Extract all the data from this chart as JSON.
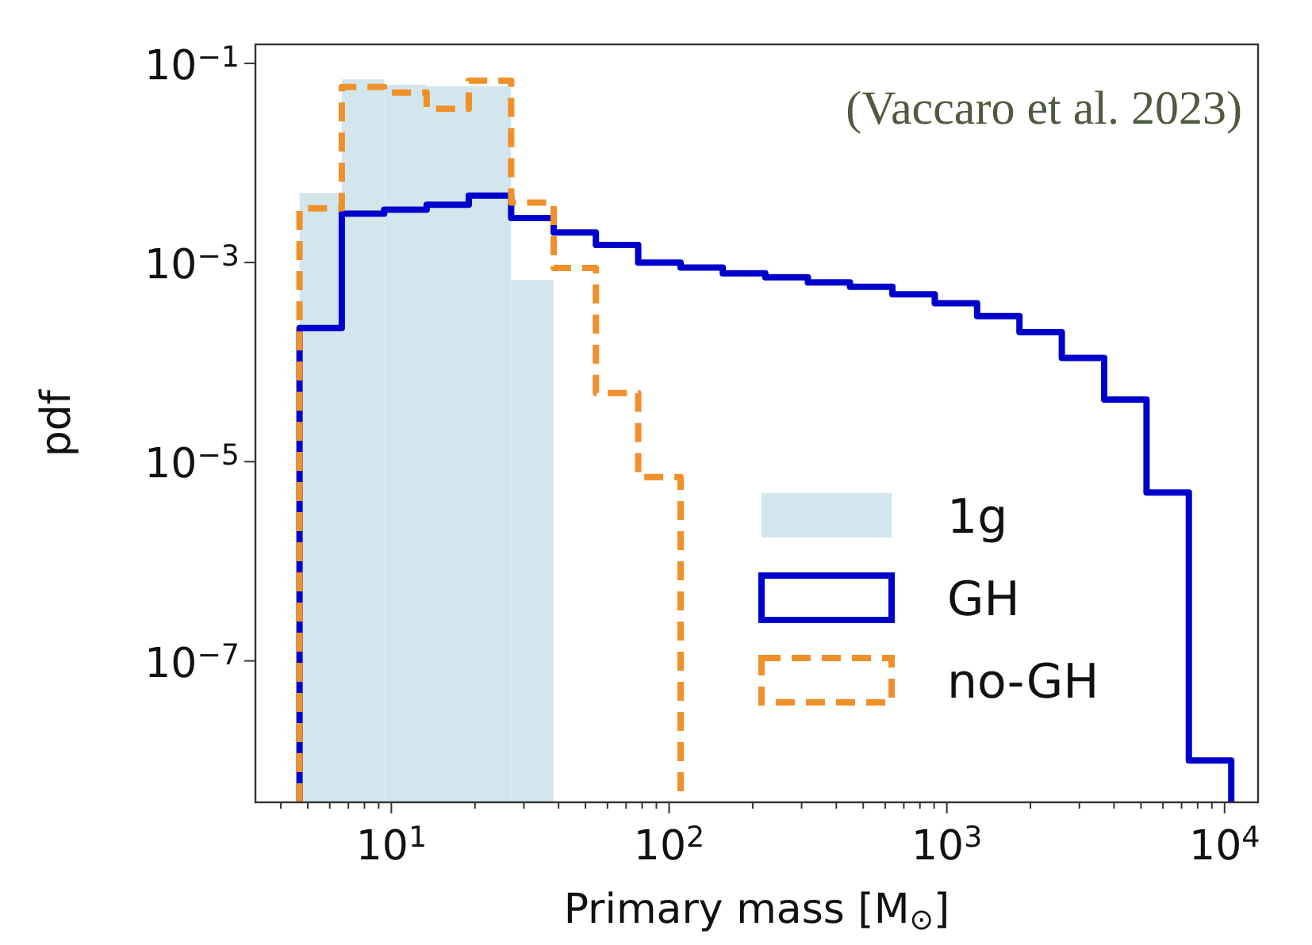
{
  "chart_data": {
    "type": "histogram",
    "xlabel": "Primary mass [M$_{⊙}$]",
    "ylabel": "pdf",
    "log": "xy",
    "annotations": [
      "(Vaccaro et al. 2023)"
    ],
    "bins": [
      4.67,
      6.63,
      9.42,
      13.4,
      19.0,
      27.0,
      38.4,
      54.5,
      77.4,
      110,
      156,
      222,
      316,
      448,
      637,
      905,
      1285,
      1826,
      2594,
      3686,
      5236,
      7437,
      10570
    ],
    "series": [
      {
        "name": "1g",
        "color": "#d3e6ee",
        "bins": [
          4.67,
          6.63,
          9.42,
          13.4,
          19.0,
          27.0,
          38.4
        ],
        "values": [
          0.005,
          0.069,
          0.061,
          0.059,
          0.059,
          0.00067
        ]
      },
      {
        "name": "GH",
        "color": "#0000cc",
        "line_style": "solid",
        "values": [
          0.00022,
          0.0031,
          0.0034,
          0.0038,
          0.0047,
          0.0028,
          0.002,
          0.0015,
          0.001,
          0.00089,
          0.00078,
          0.00071,
          0.00063,
          0.00057,
          0.00048,
          0.00039,
          0.00029,
          0.0002,
          0.00011,
          4.2e-05,
          4.9e-06,
          1e-08
        ]
      },
      {
        "name": "no-GH",
        "color": "#f0902a",
        "line_style": "dashed",
        "bins": [
          4.67,
          6.63,
          9.42,
          13.4,
          19.0,
          27.0,
          38.4,
          54.5,
          77.4,
          110
        ],
        "values": [
          0.0035,
          0.058,
          0.051,
          0.035,
          0.067,
          0.004,
          0.00088,
          4.9e-05,
          7e-06
        ]
      }
    ],
    "xlim": [
      3.24,
      13200
    ],
    "ylim": [
      3.8e-09,
      0.155
    ],
    "xticks": [
      {
        "value": 4,
        "label": null
      },
      {
        "value": 5,
        "label": null
      },
      {
        "value": 6,
        "label": null
      },
      {
        "value": 7,
        "label": null
      },
      {
        "value": 8,
        "label": null
      },
      {
        "value": 9,
        "label": null
      },
      {
        "value": 10,
        "label": "10$^{1}$"
      },
      {
        "value": 20,
        "label": null
      },
      {
        "value": 30,
        "label": null
      },
      {
        "value": 40,
        "label": null
      },
      {
        "value": 50,
        "label": null
      },
      {
        "value": 60,
        "label": null
      },
      {
        "value": 70,
        "label": null
      },
      {
        "value": 80,
        "label": null
      },
      {
        "value": 90,
        "label": null
      },
      {
        "value": 100,
        "label": "10$^{2}$"
      },
      {
        "value": 200,
        "label": null
      },
      {
        "value": 300,
        "label": null
      },
      {
        "value": 400,
        "label": null
      },
      {
        "value": 500,
        "label": null
      },
      {
        "value": 600,
        "label": null
      },
      {
        "value": 700,
        "label": null
      },
      {
        "value": 800,
        "label": null
      },
      {
        "value": 900,
        "label": null
      },
      {
        "value": 1000,
        "label": "10$^{3}$"
      },
      {
        "value": 2000,
        "label": null
      },
      {
        "value": 3000,
        "label": null
      },
      {
        "value": 4000,
        "label": null
      },
      {
        "value": 5000,
        "label": null
      },
      {
        "value": 6000,
        "label": null
      },
      {
        "value": 7000,
        "label": null
      },
      {
        "value": 8000,
        "label": null
      },
      {
        "value": 9000,
        "label": null
      },
      {
        "value": 10000,
        "label": "10$^{4}$"
      }
    ],
    "yticks": [
      {
        "value": 1e-07,
        "label": "10$^{−7}$"
      },
      {
        "value": 1e-05,
        "label": "10$^{−5}$"
      },
      {
        "value": 0.001,
        "label": "10$^{−3}$"
      },
      {
        "value": 0.1,
        "label": "10$^{−1}$"
      }
    ],
    "grid": false,
    "legend": "bottom right"
  }
}
